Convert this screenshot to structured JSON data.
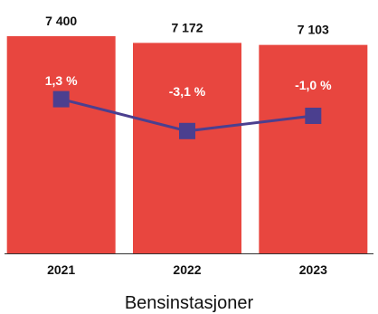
{
  "chart_data": {
    "type": "bar",
    "categories": [
      "2021",
      "2022",
      "2023"
    ],
    "values": [
      7400,
      7172,
      7103
    ],
    "value_labels": [
      "7 400",
      "7 172",
      "7 103"
    ],
    "xlabel": "Bensinstasjoner",
    "ylim": [
      0,
      7400
    ],
    "grid": false,
    "overlay": {
      "type": "line",
      "values": [
        1.3,
        -3.1,
        -1.0
      ],
      "labels": [
        "1,3 %",
        "-3,1 %",
        "-1,0 %"
      ],
      "ylim": [
        -20,
        10
      ]
    },
    "colors": {
      "bar": "#e8463f",
      "line": "#4b3f8f",
      "marker": "#4b3f8f"
    }
  }
}
